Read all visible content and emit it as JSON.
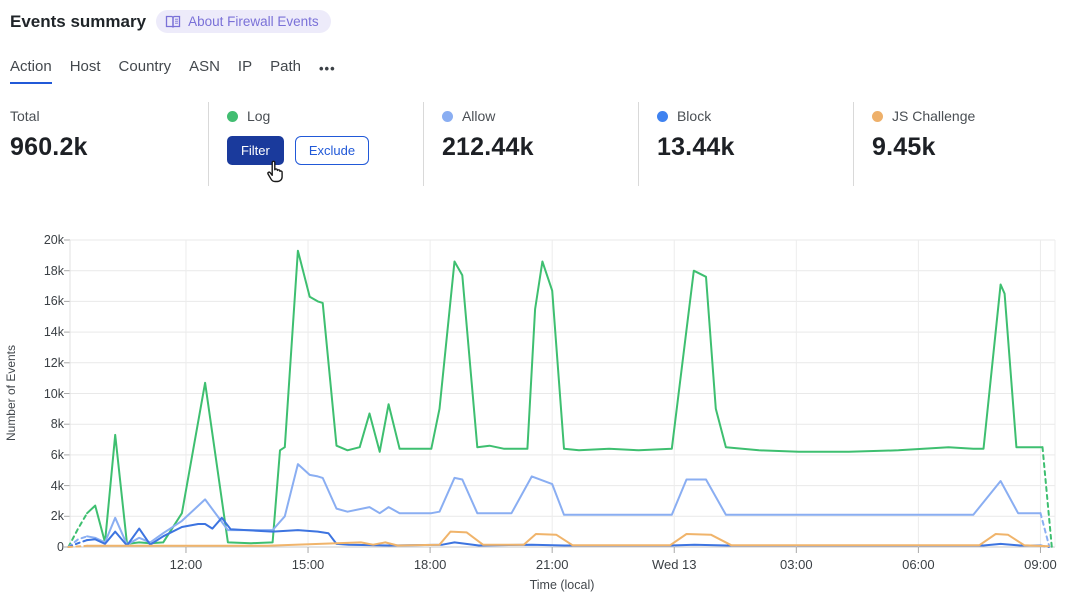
{
  "header": {
    "title": "Events summary",
    "badge_label": "About Firewall Events"
  },
  "tabs": {
    "items": [
      {
        "label": "Action",
        "active": true
      },
      {
        "label": "Host",
        "active": false
      },
      {
        "label": "Country",
        "active": false
      },
      {
        "label": "ASN",
        "active": false
      },
      {
        "label": "IP",
        "active": false
      },
      {
        "label": "Path",
        "active": false
      }
    ],
    "more_label": "•••"
  },
  "stats": {
    "total": {
      "label": "Total",
      "value": "960.2k"
    },
    "log": {
      "label": "Log",
      "color": "#41bd71",
      "filter_label": "Filter",
      "exclude_label": "Exclude"
    },
    "allow": {
      "label": "Allow",
      "color": "#8aaef2",
      "value": "212.44k"
    },
    "block": {
      "label": "Block",
      "color": "#3f82f0",
      "value": "13.44k"
    },
    "js_challenge": {
      "label": "JS Challenge",
      "color": "#eeb06a",
      "value": "9.45k"
    }
  },
  "chart_data": {
    "type": "line",
    "title": "",
    "xlabel": "Time (local)",
    "ylabel": "Number of Events",
    "ylim": [
      0,
      20000
    ],
    "values_unit": "thousands",
    "grid": true,
    "y_ticks": [
      {
        "v": 0,
        "label": "0"
      },
      {
        "v": 2,
        "label": "2k"
      },
      {
        "v": 4,
        "label": "4k"
      },
      {
        "v": 6,
        "label": "6k"
      },
      {
        "v": 8,
        "label": "8k"
      },
      {
        "v": 10,
        "label": "10k"
      },
      {
        "v": 12,
        "label": "12k"
      },
      {
        "v": 14,
        "label": "14k"
      },
      {
        "v": 16,
        "label": "16k"
      },
      {
        "v": 18,
        "label": "18k"
      },
      {
        "v": 20,
        "label": "20k"
      }
    ],
    "x_ticks": [
      {
        "t": 3,
        "label": "12:00"
      },
      {
        "t": 6,
        "label": "15:00"
      },
      {
        "t": 9,
        "label": "18:00"
      },
      {
        "t": 12,
        "label": "21:00"
      },
      {
        "t": 15,
        "label": "Wed 13"
      },
      {
        "t": 18,
        "label": "03:00"
      },
      {
        "t": 21,
        "label": "06:00"
      },
      {
        "t": 24,
        "label": "09:00"
      }
    ],
    "series": [
      {
        "name": "Log",
        "color": "#3ebf70",
        "dash_head": 2,
        "dash_tail": 1,
        "points": [
          [
            0.11,
            0
          ],
          [
            0.35,
            1.2
          ],
          [
            0.57,
            2.2
          ],
          [
            0.77,
            2.7
          ],
          [
            1.01,
            0.3
          ],
          [
            1.26,
            7.3
          ],
          [
            1.55,
            0.2
          ],
          [
            1.85,
            0.3
          ],
          [
            2.12,
            0.25
          ],
          [
            2.44,
            0.3
          ],
          [
            2.9,
            2.2
          ],
          [
            3.47,
            10.7
          ],
          [
            4.03,
            0.3
          ],
          [
            4.6,
            0.25
          ],
          [
            5.13,
            0.3
          ],
          [
            5.31,
            6.3
          ],
          [
            5.43,
            6.5
          ],
          [
            5.75,
            19.3
          ],
          [
            6.04,
            16.3
          ],
          [
            6.24,
            16.0
          ],
          [
            6.36,
            15.9
          ],
          [
            6.7,
            6.6
          ],
          [
            6.97,
            6.3
          ],
          [
            7.27,
            6.5
          ],
          [
            7.51,
            8.7
          ],
          [
            7.76,
            6.2
          ],
          [
            7.98,
            9.3
          ],
          [
            8.25,
            6.4
          ],
          [
            8.62,
            6.4
          ],
          [
            9.03,
            6.4
          ],
          [
            9.23,
            9.0
          ],
          [
            9.6,
            18.6
          ],
          [
            9.79,
            17.7
          ],
          [
            10.16,
            6.5
          ],
          [
            10.46,
            6.6
          ],
          [
            10.82,
            6.4
          ],
          [
            11.39,
            6.4
          ],
          [
            11.58,
            15.5
          ],
          [
            11.76,
            18.6
          ],
          [
            12.0,
            16.7
          ],
          [
            12.29,
            6.4
          ],
          [
            12.66,
            6.3
          ],
          [
            13.4,
            6.4
          ],
          [
            14.13,
            6.3
          ],
          [
            14.94,
            6.4
          ],
          [
            15.48,
            18.0
          ],
          [
            15.78,
            17.6
          ],
          [
            16.02,
            9.0
          ],
          [
            16.27,
            6.5
          ],
          [
            17.08,
            6.3
          ],
          [
            18.06,
            6.2
          ],
          [
            19.29,
            6.2
          ],
          [
            20.51,
            6.3
          ],
          [
            21.74,
            6.5
          ],
          [
            22.35,
            6.4
          ],
          [
            22.6,
            6.4
          ],
          [
            23.02,
            17.1
          ],
          [
            23.12,
            16.5
          ],
          [
            23.41,
            6.5
          ],
          [
            24.05,
            6.5
          ],
          [
            24.28,
            0
          ]
        ]
      },
      {
        "name": "Allow",
        "color": "#8aaef2",
        "dash_head": 2,
        "dash_tail": 1,
        "points": [
          [
            0.11,
            0
          ],
          [
            0.35,
            0.5
          ],
          [
            0.57,
            0.7
          ],
          [
            0.77,
            0.6
          ],
          [
            1.01,
            0.3
          ],
          [
            1.26,
            1.9
          ],
          [
            1.55,
            0.15
          ],
          [
            1.85,
            0.6
          ],
          [
            2.12,
            0.3
          ],
          [
            2.44,
            0.9
          ],
          [
            2.9,
            1.7
          ],
          [
            3.47,
            3.1
          ],
          [
            4.03,
            1.1
          ],
          [
            5.13,
            1.1
          ],
          [
            5.43,
            2.0
          ],
          [
            5.75,
            5.4
          ],
          [
            6.04,
            4.7
          ],
          [
            6.24,
            4.6
          ],
          [
            6.36,
            4.5
          ],
          [
            6.7,
            2.5
          ],
          [
            6.97,
            2.3
          ],
          [
            7.51,
            2.6
          ],
          [
            7.76,
            2.2
          ],
          [
            7.98,
            2.6
          ],
          [
            8.25,
            2.2
          ],
          [
            9.03,
            2.2
          ],
          [
            9.23,
            2.3
          ],
          [
            9.6,
            4.5
          ],
          [
            9.79,
            4.4
          ],
          [
            10.16,
            2.2
          ],
          [
            10.82,
            2.2
          ],
          [
            11.0,
            2.2
          ],
          [
            11.5,
            4.6
          ],
          [
            12.0,
            4.1
          ],
          [
            12.29,
            2.1
          ],
          [
            13.4,
            2.1
          ],
          [
            14.94,
            2.1
          ],
          [
            15.3,
            4.4
          ],
          [
            15.78,
            4.4
          ],
          [
            16.27,
            2.1
          ],
          [
            18.0,
            2.1
          ],
          [
            20.0,
            2.1
          ],
          [
            22.35,
            2.1
          ],
          [
            23.02,
            4.3
          ],
          [
            23.45,
            2.2
          ],
          [
            24.0,
            2.2
          ],
          [
            24.22,
            0
          ]
        ]
      },
      {
        "name": "Block",
        "color": "#3d74e0",
        "dash_head": 2,
        "dash_tail": 1,
        "points": [
          [
            0.11,
            0
          ],
          [
            0.35,
            0.25
          ],
          [
            0.57,
            0.45
          ],
          [
            0.77,
            0.5
          ],
          [
            1.01,
            0.2
          ],
          [
            1.26,
            1.0
          ],
          [
            1.55,
            0.1
          ],
          [
            1.85,
            1.2
          ],
          [
            2.12,
            0.15
          ],
          [
            2.44,
            0.7
          ],
          [
            2.9,
            1.3
          ],
          [
            3.3,
            1.5
          ],
          [
            3.47,
            1.5
          ],
          [
            3.65,
            1.2
          ],
          [
            3.88,
            1.9
          ],
          [
            4.1,
            1.15
          ],
          [
            5.13,
            1.0
          ],
          [
            5.75,
            1.1
          ],
          [
            6.24,
            1.0
          ],
          [
            6.5,
            0.9
          ],
          [
            6.7,
            0.2
          ],
          [
            7.0,
            0.15
          ],
          [
            8.0,
            0.1
          ],
          [
            9.3,
            0.15
          ],
          [
            9.6,
            0.3
          ],
          [
            10.2,
            0.1
          ],
          [
            11.5,
            0.15
          ],
          [
            12.3,
            0.1
          ],
          [
            14.9,
            0.1
          ],
          [
            15.5,
            0.15
          ],
          [
            16.3,
            0.1
          ],
          [
            22.6,
            0.1
          ],
          [
            23.02,
            0.2
          ],
          [
            23.5,
            0.1
          ],
          [
            24.0,
            0.1
          ],
          [
            24.2,
            0
          ]
        ]
      },
      {
        "name": "JS Challenge",
        "color": "#f0b46b",
        "dash_head": 1,
        "dash_tail": 0,
        "points": [
          [
            0.11,
            0
          ],
          [
            0.57,
            0.08
          ],
          [
            5.0,
            0.08
          ],
          [
            7.3,
            0.3
          ],
          [
            7.6,
            0.15
          ],
          [
            7.9,
            0.3
          ],
          [
            8.2,
            0.1
          ],
          [
            9.23,
            0.15
          ],
          [
            9.5,
            1.0
          ],
          [
            9.9,
            0.95
          ],
          [
            10.3,
            0.15
          ],
          [
            11.3,
            0.15
          ],
          [
            11.6,
            0.85
          ],
          [
            12.1,
            0.8
          ],
          [
            12.5,
            0.12
          ],
          [
            14.9,
            0.12
          ],
          [
            15.3,
            0.85
          ],
          [
            15.9,
            0.8
          ],
          [
            16.4,
            0.12
          ],
          [
            22.5,
            0.12
          ],
          [
            22.9,
            0.85
          ],
          [
            23.2,
            0.8
          ],
          [
            23.6,
            0.12
          ],
          [
            24.2,
            0.05
          ]
        ]
      }
    ]
  }
}
